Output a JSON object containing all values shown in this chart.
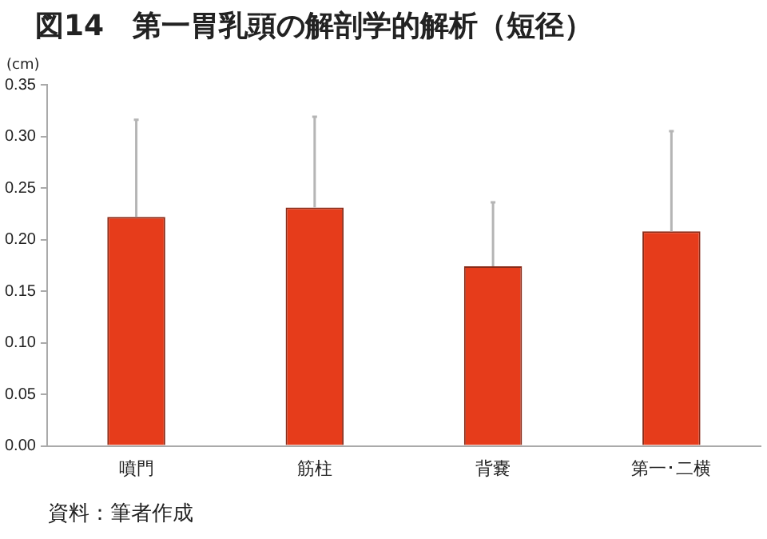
{
  "chart_data": {
    "type": "bar",
    "title": "図14　第一胃乳頭の解剖学的解析（短径）",
    "ylabel": "(cm)",
    "categories": [
      "噴門",
      "筋柱",
      "背嚢",
      "第一･二横"
    ],
    "values": [
      0.222,
      0.231,
      0.174,
      0.208
    ],
    "errors": [
      [
        0.222,
        0.316
      ],
      [
        0.231,
        0.319
      ],
      [
        0.174,
        0.236
      ],
      [
        0.208,
        0.305
      ]
    ],
    "color": "#e63c1b",
    "ylim": [
      0,
      0.35
    ],
    "yticks": [
      {
        "value": 0,
        "label": "0.00"
      },
      {
        "value": 0.05,
        "label": "0.05"
      },
      {
        "value": 0.1,
        "label": "0.10"
      },
      {
        "value": 0.15,
        "label": "0.15"
      },
      {
        "value": 0.2,
        "label": "0.20"
      },
      {
        "value": 0.25,
        "label": "0.25"
      },
      {
        "value": 0.3,
        "label": "0.30"
      },
      {
        "value": 0.35,
        "label": "0.35"
      }
    ],
    "grid": false,
    "legend": false,
    "annotations": [
      "資料：筆者作成"
    ]
  }
}
